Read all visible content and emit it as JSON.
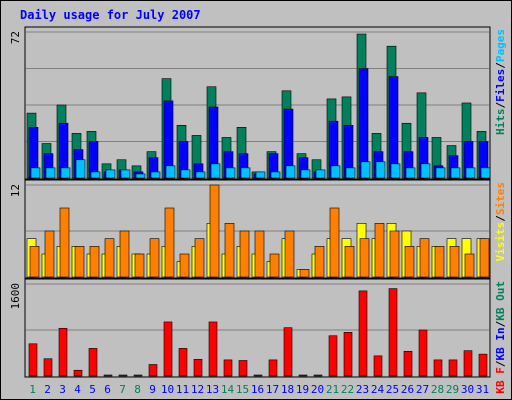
{
  "title": "Daily usage for July 2007",
  "colors": {
    "hits": "#00805c",
    "files": "#0000ff",
    "pages": "#00c0ff",
    "visits": "#ffff00",
    "sites": "#ff8000",
    "kbin": "#0000ff",
    "kbout": "#00805c",
    "kbf": "#ff0000",
    "title": "#0000ff",
    "weekday_label": "#0000ff",
    "weekend_label": "#00805c",
    "background": "#c0c0c0",
    "slash": "#000000"
  },
  "chart_data": [
    {
      "type": "bar",
      "panel": "hits-files-pages",
      "title": "Daily usage for July 2007",
      "categories": [
        "1",
        "2",
        "3",
        "4",
        "5",
        "6",
        "7",
        "8",
        "9",
        "10",
        "11",
        "12",
        "13",
        "14",
        "15",
        "16",
        "17",
        "18",
        "19",
        "20",
        "21",
        "22",
        "23",
        "24",
        "25",
        "26",
        "27",
        "28",
        "29",
        "30",
        "31"
      ],
      "ylim": [
        0,
        72
      ],
      "ytick": "72",
      "legend": [
        {
          "key": "hits",
          "label": "Hits"
        },
        {
          "key": "files",
          "label": "Files"
        },
        {
          "key": "pages",
          "label": "Pages"
        }
      ],
      "series": [
        {
          "name": "Hits",
          "key": "hits",
          "values": [
            32,
            17,
            36,
            22,
            23,
            7,
            9,
            6,
            13,
            49,
            26,
            21,
            45,
            20,
            25,
            3,
            13,
            43,
            12,
            9,
            39,
            40,
            71,
            22,
            65,
            27,
            42,
            20,
            16,
            37,
            23
          ]
        },
        {
          "name": "Files",
          "key": "files",
          "values": [
            25,
            12,
            27,
            14,
            18,
            3,
            4,
            3,
            10,
            38,
            18,
            7,
            35,
            13,
            12,
            2,
            12,
            34,
            10,
            3,
            28,
            26,
            54,
            13,
            50,
            13,
            20,
            6,
            11,
            18,
            18
          ]
        },
        {
          "name": "Pages",
          "key": "pages",
          "values": [
            5,
            5,
            5,
            9,
            3,
            4,
            4,
            2,
            3,
            6,
            4,
            3,
            7,
            5,
            5,
            3,
            3,
            6,
            4,
            4,
            6,
            5,
            8,
            8,
            7,
            5,
            7,
            5,
            5,
            5,
            5
          ]
        }
      ]
    },
    {
      "type": "bar",
      "panel": "visits-sites",
      "categories": [
        "1",
        "2",
        "3",
        "4",
        "5",
        "6",
        "7",
        "8",
        "9",
        "10",
        "11",
        "12",
        "13",
        "14",
        "15",
        "16",
        "17",
        "18",
        "19",
        "20",
        "21",
        "22",
        "23",
        "24",
        "25",
        "26",
        "27",
        "28",
        "29",
        "30",
        "31"
      ],
      "ylim": [
        0,
        12
      ],
      "ytick": "12",
      "legend": [
        {
          "key": "visits",
          "label": "Visits"
        },
        {
          "key": "sites",
          "label": "Sites"
        }
      ],
      "series": [
        {
          "name": "Visits",
          "key": "visits",
          "values": [
            5,
            3,
            4,
            4,
            3,
            3,
            4,
            3,
            3,
            4,
            2,
            4,
            7,
            3,
            4,
            3,
            2,
            5,
            1,
            3,
            5,
            5,
            7,
            5,
            7,
            6,
            4,
            4,
            5,
            5,
            5
          ]
        },
        {
          "name": "Sites",
          "key": "sites",
          "values": [
            4,
            6,
            9,
            4,
            4,
            5,
            6,
            3,
            5,
            9,
            3,
            5,
            12,
            7,
            6,
            6,
            3,
            6,
            1,
            4,
            9,
            4,
            5,
            7,
            6,
            4,
            5,
            4,
            4,
            3,
            5
          ]
        }
      ]
    },
    {
      "type": "bar",
      "panel": "kbytes",
      "categories": [
        "1",
        "2",
        "3",
        "4",
        "5",
        "6",
        "7",
        "8",
        "9",
        "10",
        "11",
        "12",
        "13",
        "14",
        "15",
        "16",
        "17",
        "18",
        "19",
        "20",
        "21",
        "22",
        "23",
        "24",
        "25",
        "26",
        "27",
        "28",
        "29",
        "30",
        "31"
      ],
      "ylim": [
        0,
        1600
      ],
      "ytick": "1600",
      "legend": [
        {
          "key": "kbf",
          "label": "KB F"
        },
        {
          "key": "kbin",
          "label": "KB In"
        },
        {
          "key": "kbout",
          "label": "KB Out"
        }
      ],
      "series": [
        {
          "name": "KB F",
          "key": "kbf",
          "values": [
            560,
            300,
            830,
            100,
            480,
            10,
            10,
            10,
            200,
            940,
            480,
            290,
            940,
            280,
            270,
            10,
            280,
            840,
            10,
            10,
            700,
            760,
            1480,
            350,
            1520,
            430,
            800,
            280,
            280,
            440,
            380
          ]
        }
      ]
    }
  ],
  "day_labels": [
    {
      "text": "1",
      "weekend": true
    },
    {
      "text": "2",
      "weekend": false
    },
    {
      "text": "3",
      "weekend": false
    },
    {
      "text": "4",
      "weekend": false
    },
    {
      "text": "5",
      "weekend": false
    },
    {
      "text": "6",
      "weekend": false
    },
    {
      "text": "7",
      "weekend": true
    },
    {
      "text": "8",
      "weekend": true
    },
    {
      "text": "9",
      "weekend": false
    },
    {
      "text": "10",
      "weekend": false
    },
    {
      "text": "11",
      "weekend": false
    },
    {
      "text": "12",
      "weekend": false
    },
    {
      "text": "13",
      "weekend": false
    },
    {
      "text": "14",
      "weekend": true
    },
    {
      "text": "15",
      "weekend": true
    },
    {
      "text": "16",
      "weekend": false
    },
    {
      "text": "17",
      "weekend": false
    },
    {
      "text": "18",
      "weekend": false
    },
    {
      "text": "19",
      "weekend": false
    },
    {
      "text": "20",
      "weekend": false
    },
    {
      "text": "21",
      "weekend": true
    },
    {
      "text": "22",
      "weekend": true
    },
    {
      "text": "23",
      "weekend": false
    },
    {
      "text": "24",
      "weekend": false
    },
    {
      "text": "25",
      "weekend": false
    },
    {
      "text": "26",
      "weekend": false
    },
    {
      "text": "27",
      "weekend": false
    },
    {
      "text": "28",
      "weekend": true
    },
    {
      "text": "29",
      "weekend": true
    },
    {
      "text": "30",
      "weekend": false
    },
    {
      "text": "31",
      "weekend": false
    }
  ]
}
